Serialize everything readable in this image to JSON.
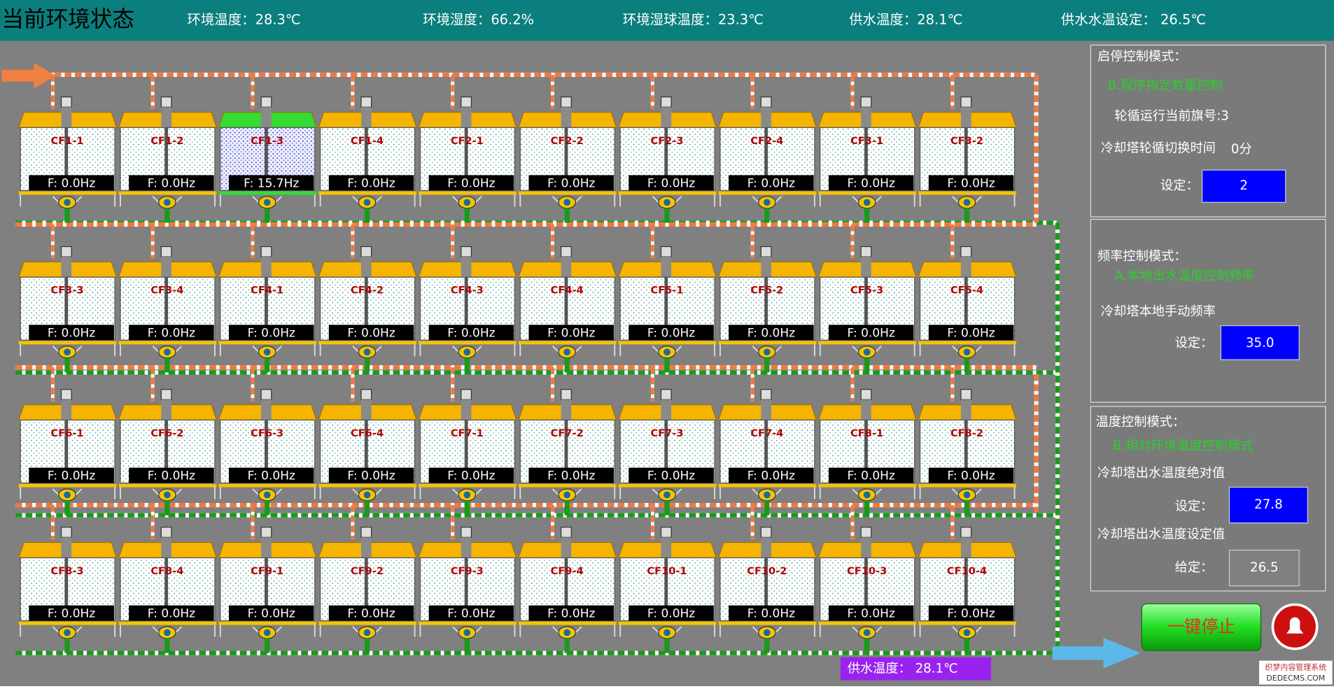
{
  "header": {
    "title": "当前环境状态",
    "items": [
      "环境温度：28.3℃",
      "环境湿度：66.2%",
      "环境湿球温度：23.3℃",
      "供水温度：28.1℃",
      "供水水温设定： 26.5℃"
    ]
  },
  "towers": [
    {
      "name": "CF1-1",
      "freq": "F: 0.0Hz",
      "color": "#f5b400"
    },
    {
      "name": "CF1-2",
      "freq": "F: 0.0Hz",
      "color": "#f5b400"
    },
    {
      "name": "CF1-3",
      "freq": "F: 15.7Hz",
      "color": "#33dd33"
    },
    {
      "name": "CF1-4",
      "freq": "F: 0.0Hz",
      "color": "#f5b400"
    },
    {
      "name": "CF2-1",
      "freq": "F: 0.0Hz",
      "color": "#f5b400"
    },
    {
      "name": "CF2-2",
      "freq": "F: 0.0Hz",
      "color": "#f5b400"
    },
    {
      "name": "CF2-3",
      "freq": "F: 0.0Hz",
      "color": "#f5b400"
    },
    {
      "name": "CF2-4",
      "freq": "F: 0.0Hz",
      "color": "#f5b400"
    },
    {
      "name": "CF3-1",
      "freq": "F: 0.0Hz",
      "color": "#f5b400"
    },
    {
      "name": "CF3-2",
      "freq": "F: 0.0Hz",
      "color": "#f5b400"
    },
    {
      "name": "CF3-3",
      "freq": "F: 0.0Hz",
      "color": "#f5b400"
    },
    {
      "name": "CF3-4",
      "freq": "F: 0.0Hz",
      "color": "#f5b400"
    },
    {
      "name": "CF4-1",
      "freq": "F: 0.0Hz",
      "color": "#f5b400"
    },
    {
      "name": "CF4-2",
      "freq": "F: 0.0Hz",
      "color": "#f5b400"
    },
    {
      "name": "CF4-3",
      "freq": "F: 0.0Hz",
      "color": "#f5b400"
    },
    {
      "name": "CF4-4",
      "freq": "F: 0.0Hz",
      "color": "#f5b400"
    },
    {
      "name": "CF5-1",
      "freq": "F: 0.0Hz",
      "color": "#f5b400"
    },
    {
      "name": "CF5-2",
      "freq": "F: 0.0Hz",
      "color": "#f5b400"
    },
    {
      "name": "CF5-3",
      "freq": "F: 0.0Hz",
      "color": "#f5b400"
    },
    {
      "name": "CF5-4",
      "freq": "F: 0.0Hz",
      "color": "#f5b400"
    },
    {
      "name": "CF6-1",
      "freq": "F: 0.0Hz",
      "color": "#f5b400"
    },
    {
      "name": "CF6-2",
      "freq": "F: 0.0Hz",
      "color": "#f5b400"
    },
    {
      "name": "CF6-3",
      "freq": "F: 0.0Hz",
      "color": "#f5b400"
    },
    {
      "name": "CF6-4",
      "freq": "F: 0.0Hz",
      "color": "#f5b400"
    },
    {
      "name": "CF7-1",
      "freq": "F: 0.0Hz",
      "color": "#f5b400"
    },
    {
      "name": "CF7-2",
      "freq": "F: 0.0Hz",
      "color": "#f5b400"
    },
    {
      "name": "CF7-3",
      "freq": "F: 0.0Hz",
      "color": "#f5b400"
    },
    {
      "name": "CF7-4",
      "freq": "F: 0.0Hz",
      "color": "#f5b400"
    },
    {
      "name": "CF8-1",
      "freq": "F: 0.0Hz",
      "color": "#f5b400"
    },
    {
      "name": "CF8-2",
      "freq": "F: 0.0Hz",
      "color": "#f5b400"
    },
    {
      "name": "CF8-3",
      "freq": "F: 0.0Hz",
      "color": "#f5b400"
    },
    {
      "name": "CF8-4",
      "freq": "F: 0.0Hz",
      "color": "#f5b400"
    },
    {
      "name": "CF9-1",
      "freq": "F: 0.0Hz",
      "color": "#f5b400"
    },
    {
      "name": "CF9-2",
      "freq": "F: 0.0Hz",
      "color": "#f5b400"
    },
    {
      "name": "CF9-3",
      "freq": "F: 0.0Hz",
      "color": "#f5b400"
    },
    {
      "name": "CF9-4",
      "freq": "F: 0.0Hz",
      "color": "#f5b400"
    },
    {
      "name": "CF10-1",
      "freq": "F: 0.0Hz",
      "color": "#f5b400"
    },
    {
      "name": "CF10-2",
      "freq": "F: 0.0Hz",
      "color": "#f5b400"
    },
    {
      "name": "CF10-3",
      "freq": "F: 0.0Hz",
      "color": "#f5b400"
    },
    {
      "name": "CF10-4",
      "freq": "F: 0.0Hz",
      "color": "#f5b400"
    }
  ],
  "panel": {
    "start_stop": {
      "title": "启停控制模式：",
      "mode": "B.程序指定数量控制",
      "rotation": "轮循运行当前旗号:3",
      "switch_label": "冷却塔轮循切换时间",
      "switch_value": "0分",
      "set_label": "设定：",
      "set_value": "2"
    },
    "frequency": {
      "title": "频率控制模式：",
      "mode": "A.本地出水温度控制频率",
      "manual_label": "冷却塔本地手动频率",
      "set_label": "设定：",
      "set_value": "35.0"
    },
    "temperature": {
      "title": "温度控制模式：",
      "mode": "B.相对环境温度控制模式",
      "abs_label": "冷却塔出水温度绝对值",
      "abs_set_label": "设定：",
      "abs_value": "27.8",
      "sp_label": "冷却塔出水温度设定值",
      "sp_given_label": "给定：",
      "sp_value": "26.5"
    }
  },
  "stop_button": "一键停止",
  "supply_temp": "供水温度：  28.1℃",
  "watermark": [
    "织梦内容管理系统",
    "DEDECMS.COM"
  ]
}
